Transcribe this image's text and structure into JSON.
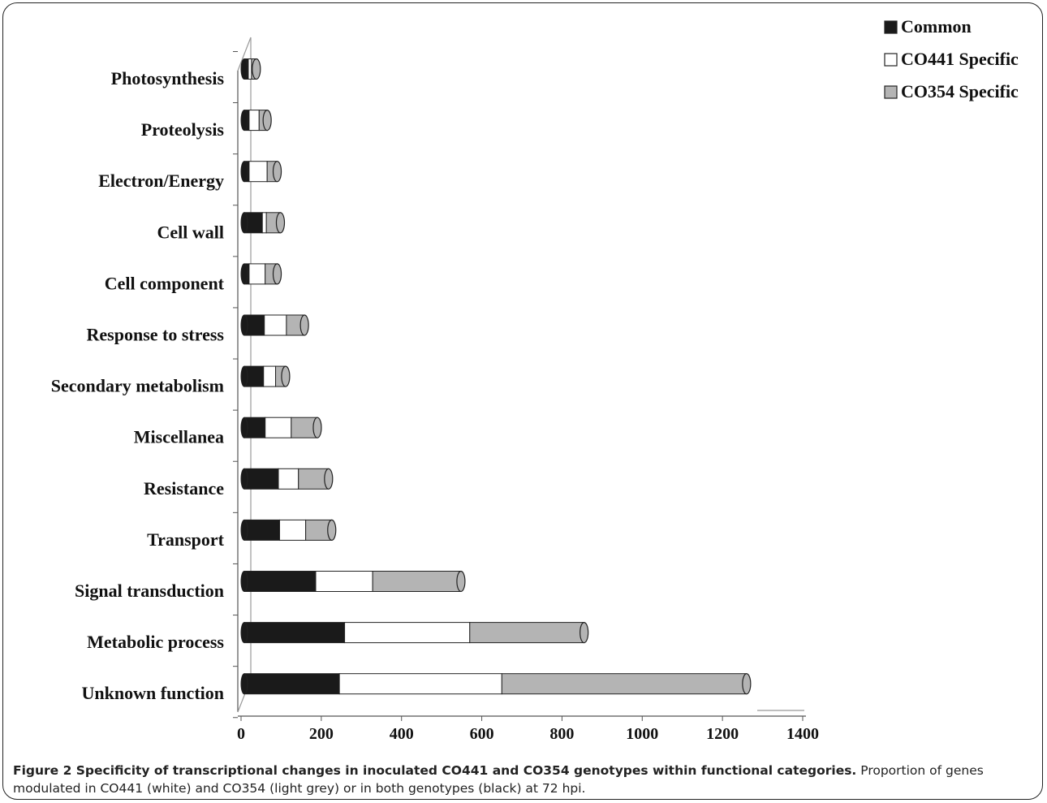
{
  "chart_data": {
    "type": "bar",
    "orientation": "horizontal",
    "stacked": true,
    "categories": [
      "Photosynthesis",
      "Proteolysis",
      "Electron/Energy",
      "Cell wall",
      "Cell component",
      "Response to stress",
      "Secondary metabolism",
      "Miscellanea",
      "Resistance",
      "Transport",
      "Signal transduction",
      "Metabolic process",
      "Unknown function"
    ],
    "series": [
      {
        "name": "Common",
        "color": "#1a1a1a",
        "values": [
          10,
          12,
          12,
          45,
          12,
          50,
          48,
          52,
          85,
          88,
          178,
          250,
          237
        ]
      },
      {
        "name": "CO441 Specific",
        "color": "#ffffff",
        "values": [
          8,
          25,
          45,
          10,
          40,
          55,
          30,
          65,
          50,
          65,
          142,
          312,
          405
        ]
      },
      {
        "name": "CO354 Specific",
        "color": "#b4b4b4",
        "values": [
          12,
          20,
          25,
          35,
          30,
          45,
          25,
          65,
          75,
          65,
          220,
          285,
          610
        ]
      }
    ],
    "x_ticks": [
      "0",
      "200",
      "400",
      "600",
      "800",
      "1000",
      "1200",
      "1400"
    ],
    "xlim": [
      0,
      1400
    ],
    "legend_position": "top-right",
    "grid": false
  },
  "legend": {
    "items": [
      {
        "symbol": "■",
        "label": "Common",
        "color": "#1a1a1a"
      },
      {
        "symbol": "□",
        "label": "CO441 Specific",
        "color": "#ffffff"
      },
      {
        "symbol": "■",
        "label": "CO354 Specific",
        "color": "#b4b4b4"
      }
    ]
  },
  "caption": {
    "title": "Figure 2 Specificity of transcriptional changes in inoculated CO441 and CO354 genotypes within functional categories.",
    "text": " Proportion of genes modulated in CO441 (white) and CO354 (light grey) or in both genotypes (black) at 72 hpi."
  }
}
